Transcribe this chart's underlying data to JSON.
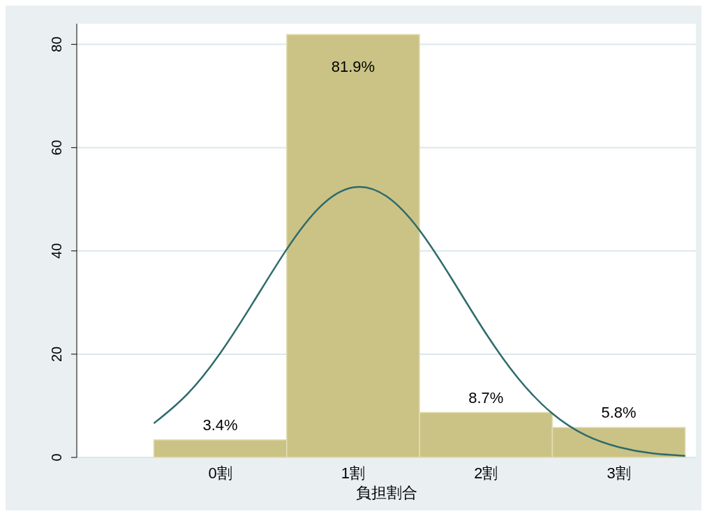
{
  "chart_data": {
    "type": "histogram",
    "xlabel": "負担割合",
    "bins": [
      -0.5,
      0.5,
      1.5,
      2.5,
      3.5
    ],
    "xlim": [
      -1.08,
      3.58
    ],
    "xticks": [
      {
        "value": 0,
        "label": "0割"
      },
      {
        "value": 1,
        "label": "1割"
      },
      {
        "value": 2,
        "label": "2割"
      },
      {
        "value": 3,
        "label": "3割"
      }
    ],
    "ylim": [
      0,
      84
    ],
    "yticks": [
      0,
      20,
      40,
      60,
      80
    ],
    "grid": "y",
    "series": [
      {
        "color": "#cbc385",
        "values": [
          3.4,
          81.9,
          8.7,
          5.8
        ],
        "value_labels": [
          "3.4%",
          "81.9%",
          "8.7%",
          "5.8%"
        ]
      },
      {
        "type": "line",
        "color": "#2e6b6b",
        "x": [
          -0.5,
          -0.25,
          0,
          0.25,
          0.5,
          0.75,
          1,
          1.25,
          1.5,
          1.75,
          2,
          2.25,
          2.5,
          2.75,
          3,
          3.25,
          3.5
        ],
        "values": [
          6.6,
          12.2,
          20.2,
          30.1,
          40.3,
          48.5,
          52.3,
          50.6,
          44,
          34.3,
          24,
          15.1,
          8.5,
          4.3,
          2,
          0.8,
          0.3
        ]
      }
    ]
  }
}
